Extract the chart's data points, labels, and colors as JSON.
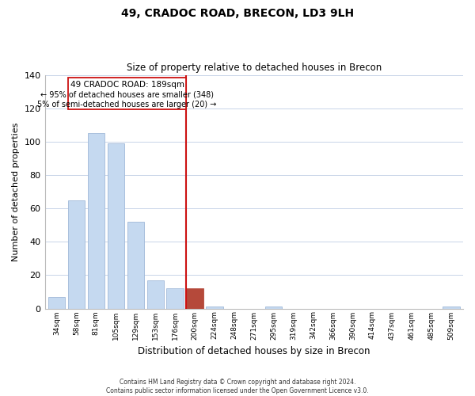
{
  "title": "49, CRADOC ROAD, BRECON, LD3 9LH",
  "subtitle": "Size of property relative to detached houses in Brecon",
  "xlabel": "Distribution of detached houses by size in Brecon",
  "ylabel": "Number of detached properties",
  "bar_labels": [
    "34sqm",
    "58sqm",
    "81sqm",
    "105sqm",
    "129sqm",
    "153sqm",
    "176sqm",
    "200sqm",
    "224sqm",
    "248sqm",
    "271sqm",
    "295sqm",
    "319sqm",
    "342sqm",
    "366sqm",
    "390sqm",
    "414sqm",
    "437sqm",
    "461sqm",
    "485sqm",
    "509sqm"
  ],
  "bar_values": [
    7,
    65,
    105,
    99,
    52,
    17,
    12,
    12,
    1,
    0,
    0,
    1,
    0,
    0,
    0,
    0,
    0,
    0,
    0,
    0,
    1
  ],
  "bar_color_normal": "#c5d9f0",
  "bar_color_highlight": "#b5493a",
  "highlight_index": 7,
  "ylim": [
    0,
    140
  ],
  "yticks": [
    0,
    20,
    40,
    60,
    80,
    100,
    120,
    140
  ],
  "annotation_line1": "49 CRADOC ROAD: 189sqm",
  "annotation_line2": "← 95% of detached houses are smaller (348)",
  "annotation_line3": "5% of semi-detached houses are larger (20) →",
  "footer_line1": "Contains HM Land Registry data © Crown copyright and database right 2024.",
  "footer_line2": "Contains public sector information licensed under the Open Government Licence v3.0.",
  "background_color": "#ffffff",
  "grid_color": "#c8d4e8",
  "vline_color": "#cc1111",
  "box_edge_color": "#cc1111"
}
